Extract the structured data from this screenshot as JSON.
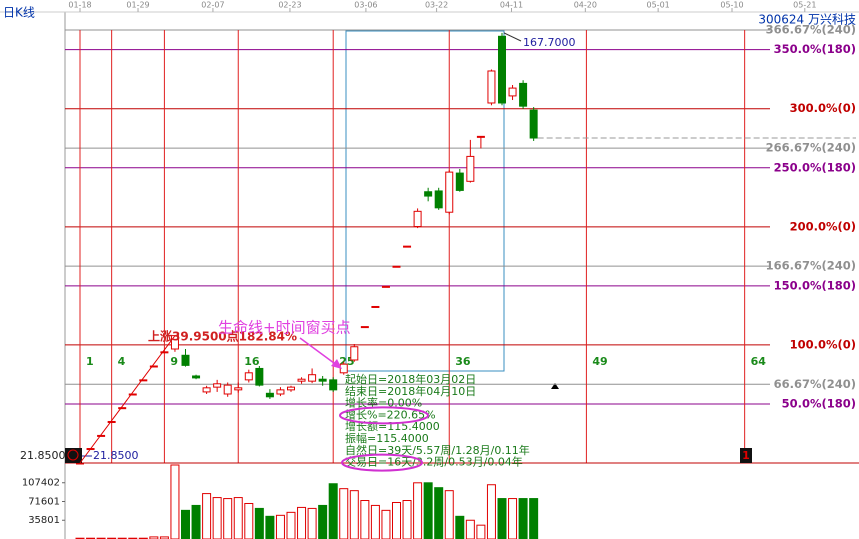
{
  "chart_data": {
    "type": "candlestick",
    "title": "日K线",
    "stock_label": "300624 万兴科技",
    "log_scale": true,
    "ylim": [
      21.85,
      170
    ],
    "y2lim": [
      0,
      366.67
    ],
    "xticks": [
      {
        "value": 0,
        "label": "01-18"
      },
      {
        "value": 5.5,
        "label": "01-29"
      },
      {
        "value": 12.6,
        "label": "02-07"
      },
      {
        "value": 19.9,
        "label": "02-23"
      },
      {
        "value": 27.1,
        "label": "03-06"
      },
      {
        "value": 33.8,
        "label": "03-22"
      },
      {
        "value": 40.9,
        "label": "04-11"
      },
      {
        "value": 47.9,
        "label": "04-20"
      },
      {
        "value": 54.8,
        "label": "05-01"
      },
      {
        "value": 61.8,
        "label": "05-10"
      },
      {
        "value": 68.7,
        "label": "05-21"
      }
    ],
    "up_color": "#e00000",
    "down_color": "#008000",
    "open": [
      21.85,
      23.4,
      24.9,
      26.6,
      28.4,
      30.3,
      32.4,
      34.6,
      37.0,
      37.5,
      36.4,
      33.0,
      30.6,
      31.3,
      30.3,
      30.9,
      32.4,
      34.2,
      30.4,
      30.3,
      30.9,
      32.2,
      32.2,
      32.5,
      32.4,
      33.5,
      35.6,
      41.7,
      45.87,
      50.46,
      55.5,
      61.05,
      67.0,
      79.0,
      79.3,
      71.7,
      86.3,
      83.0,
      102.7,
      120.3,
      165.0,
      124.4,
      132.0,
      116.3
    ],
    "high": [
      21.85,
      23.4,
      24.9,
      26.6,
      28.4,
      30.3,
      32.4,
      34.6,
      37.0,
      39.95,
      37.5,
      33.2,
      31.5,
      32.4,
      32.0,
      32.0,
      34.0,
      34.6,
      31.0,
      31.3,
      31.5,
      32.8,
      34.2,
      33.0,
      32.8,
      35.3,
      38.4,
      41.7,
      45.87,
      50.46,
      55.5,
      61.05,
      73.0,
      80.5,
      80.5,
      87.5,
      88.0,
      101.0,
      102.7,
      141.0,
      167.7,
      131.0,
      134.0,
      118.0
    ],
    "low": [
      21.85,
      23.4,
      24.9,
      26.6,
      28.4,
      30.3,
      32.4,
      34.6,
      37.0,
      37.0,
      34.5,
      32.5,
      30.3,
      30.6,
      29.9,
      30.5,
      32.0,
      31.4,
      29.6,
      30.0,
      30.6,
      31.8,
      31.9,
      31.5,
      30.6,
      33.2,
      35.3,
      41.7,
      45.87,
      50.46,
      55.5,
      61.05,
      66.5,
      75.5,
      72.5,
      71.0,
      79.0,
      82.5,
      97.0,
      119.0,
      119.0,
      122.0,
      117.0,
      100.5
    ],
    "close": [
      21.85,
      23.4,
      24.9,
      26.6,
      28.4,
      30.3,
      32.4,
      34.6,
      37.0,
      39.95,
      34.7,
      32.7,
      31.2,
      31.8,
      31.6,
      31.2,
      33.5,
      31.6,
      29.9,
      30.9,
      31.3,
      32.5,
      33.2,
      32.2,
      30.9,
      34.9,
      37.9,
      41.7,
      45.87,
      50.46,
      55.5,
      61.05,
      72.0,
      77.4,
      73.2,
      86.7,
      79.5,
      93.4,
      102.7,
      140.0,
      120.3,
      129.1,
      118.5,
      101.9
    ],
    "volume": {
      "values": [
        1500,
        1500,
        1500,
        1500,
        1500,
        1500,
        1500,
        4000,
        4000,
        141300,
        54700,
        64100,
        86700,
        79100,
        77200,
        79100,
        67800,
        58400,
        43300,
        45200,
        50900,
        60300,
        58400,
        64100,
        105500,
        96100,
        92300,
        73500,
        64100,
        54700,
        69700,
        73500,
        107300,
        107300,
        98000,
        92300,
        43300,
        35800,
        26400,
        103600,
        77200,
        77200,
        77200,
        77200
      ],
      "ylim": [
        0,
        143202
      ],
      "yticks": [
        35801,
        71601,
        107402
      ]
    },
    "levels": [
      {
        "value": 366.67,
        "label": "366.67%(240)",
        "color": "#909090"
      },
      {
        "value": 350,
        "label": "350.0%(180)",
        "color": "#8b008b"
      },
      {
        "value": 300,
        "label": "300.0%(0)",
        "color": "#c00000"
      },
      {
        "value": 266.67,
        "label": "266.67%(240)",
        "color": "#909090"
      },
      {
        "value": 250,
        "label": "250.0%(180)",
        "color": "#8b008b"
      },
      {
        "value": 200,
        "label": "200.0%(0)",
        "color": "#c00000"
      },
      {
        "value": 166.67,
        "label": "166.67%(240)",
        "color": "#909090"
      },
      {
        "value": 150,
        "label": "150.0%(180)",
        "color": "#8b008b"
      },
      {
        "value": 100,
        "label": "100.0%(0)",
        "color": "#c00000"
      },
      {
        "value": 66.67,
        "label": "66.67%(240)",
        "color": "#909090"
      },
      {
        "value": 50,
        "label": "50.0%(180)",
        "color": "#8b008b"
      }
    ],
    "time_windows": [
      1,
      4,
      9,
      16,
      25,
      36,
      49,
      64
    ],
    "high_label": {
      "value": 167.7,
      "label": "167.7000"
    },
    "low_label": {
      "value": 21.85,
      "label": "21.8500"
    },
    "rise": {
      "to": 39.95,
      "label": "上涨39.9500点182.84%"
    },
    "callout": "生命线+时间窗买点",
    "stats": [
      "起始日=2018年03月02日",
      "结束日=2018年04月10日",
      "增长率=0.00%",
      "增长%=220.65%",
      "增长额=115.4000",
      "振幅=115.4000",
      "自然日=39天/5.57周/1.28月/0.11年",
      "交易日=16天/3.2周/0.53月/0.04年"
    ],
    "end_marker": "1"
  }
}
